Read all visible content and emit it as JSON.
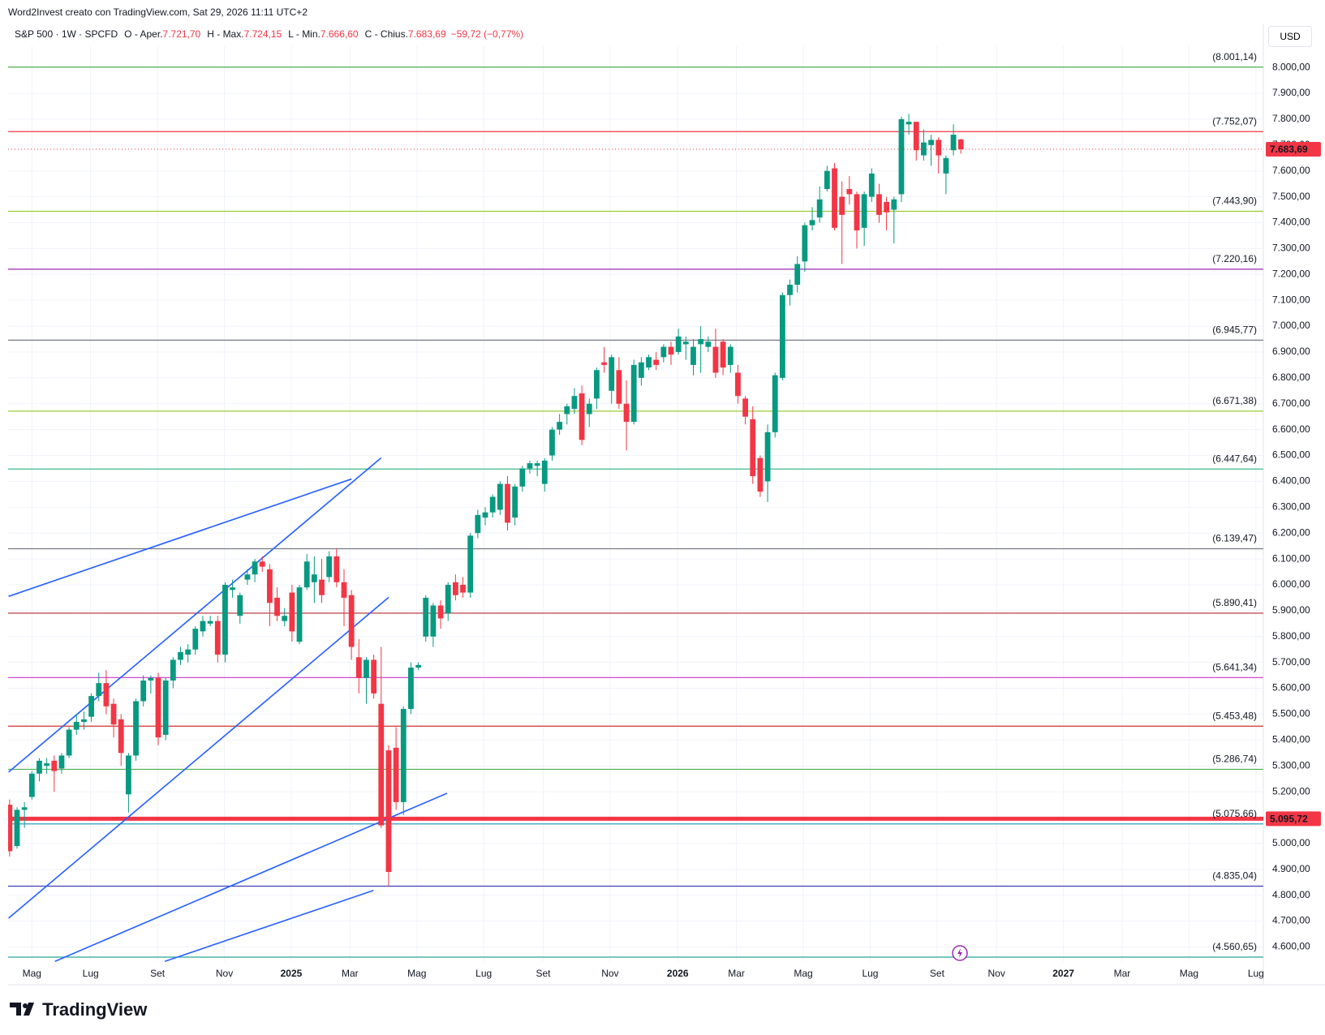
{
  "header": "Word2Invest creato con TradingView.com, Sat 29, 2026 11:11 UTC+2",
  "legend": {
    "symbol": "S&P 500 · 1W · SPCFD",
    "items": [
      {
        "key": "O - Aper.",
        "value": "7.721,70"
      },
      {
        "key": "H - Max.",
        "value": "7.724,15"
      },
      {
        "key": "L - Min.",
        "value": "7.666,60"
      },
      {
        "key": "C - Chius.",
        "value": "7.683,69"
      }
    ],
    "change": "−59,72 (−0,77%)"
  },
  "currency": "USD",
  "brand": "TradingView",
  "chart_data": {
    "type": "candlestick",
    "up_color": "#089981",
    "down_color": "#f23645",
    "grid": true,
    "ylim": [
      4545,
      8082
    ],
    "xlim": [
      -0.2,
      168.7
    ],
    "yticks": [
      {
        "value": 4600,
        "label": "4.600,00"
      },
      {
        "value": 4700,
        "label": "4.700,00"
      },
      {
        "value": 4800,
        "label": "4.800,00"
      },
      {
        "value": 4900,
        "label": "4.900,00"
      },
      {
        "value": 5000,
        "label": "5.000,00"
      },
      {
        "value": 5100,
        "label": "5.100,00"
      },
      {
        "value": 5200,
        "label": "5.200,00"
      },
      {
        "value": 5300,
        "label": "5.300,00"
      },
      {
        "value": 5400,
        "label": "5.400,00"
      },
      {
        "value": 5500,
        "label": "5.500,00"
      },
      {
        "value": 5600,
        "label": "5.600,00"
      },
      {
        "value": 5700,
        "label": "5.700,00"
      },
      {
        "value": 5800,
        "label": "5.800,00"
      },
      {
        "value": 5900,
        "label": "5.900,00"
      },
      {
        "value": 6000,
        "label": "6.000,00"
      },
      {
        "value": 6100,
        "label": "6.100,00"
      },
      {
        "value": 6200,
        "label": "6.200,00"
      },
      {
        "value": 6300,
        "label": "6.300,00"
      },
      {
        "value": 6400,
        "label": "6.400,00"
      },
      {
        "value": 6500,
        "label": "6.500,00"
      },
      {
        "value": 6600,
        "label": "6.600,00"
      },
      {
        "value": 6700,
        "label": "6.700,00"
      },
      {
        "value": 6800,
        "label": "6.800,00"
      },
      {
        "value": 6900,
        "label": "6.900,00"
      },
      {
        "value": 7000,
        "label": "7.000,00"
      },
      {
        "value": 7100,
        "label": "7.100,00"
      },
      {
        "value": 7200,
        "label": "7.200,00"
      },
      {
        "value": 7300,
        "label": "7.300,00"
      },
      {
        "value": 7400,
        "label": "7.400,00"
      },
      {
        "value": 7500,
        "label": "7.500,00"
      },
      {
        "value": 7600,
        "label": "7.600,00"
      },
      {
        "value": 7700,
        "label": "7.700,00"
      },
      {
        "value": 7800,
        "label": "7.800,00"
      },
      {
        "value": 7900,
        "label": "7.900,00"
      },
      {
        "value": 8000,
        "label": "8.000,00"
      }
    ],
    "xticks": [
      {
        "value": 3,
        "label": "Mag"
      },
      {
        "value": 10.9,
        "label": "Lug"
      },
      {
        "value": 19.9,
        "label": "Set"
      },
      {
        "value": 28.9,
        "label": "Nov"
      },
      {
        "value": 37.9,
        "label": "2025"
      },
      {
        "value": 45.8,
        "label": "Mar"
      },
      {
        "value": 54.8,
        "label": "Mag"
      },
      {
        "value": 63.8,
        "label": "Lug"
      },
      {
        "value": 71.8,
        "label": "Set"
      },
      {
        "value": 80.8,
        "label": "Nov"
      },
      {
        "value": 89.9,
        "label": "2026"
      },
      {
        "value": 97.8,
        "label": "Mar"
      },
      {
        "value": 106.8,
        "label": "Mag"
      },
      {
        "value": 115.8,
        "label": "Lug"
      },
      {
        "value": 124.8,
        "label": "Set"
      },
      {
        "value": 132.8,
        "label": "Nov"
      },
      {
        "value": 141.8,
        "label": "2027"
      },
      {
        "value": 149.7,
        "label": "Mar"
      },
      {
        "value": 158.7,
        "label": "Mag"
      },
      {
        "value": 167.7,
        "label": "Lug"
      }
    ],
    "levels": [
      {
        "value": 8001.14,
        "label": "(8.001,14)",
        "color": "#4caf50"
      },
      {
        "value": 7752.07,
        "label": "(7.752,07)",
        "color": "#f23645"
      },
      {
        "value": 7443.9,
        "label": "(7.443,90)",
        "color": "#9ccc36"
      },
      {
        "value": 7220.16,
        "label": "(7.220,16)",
        "color": "#9c27b0"
      },
      {
        "value": 6945.77,
        "label": "(6.945,77)",
        "color": "#787b86"
      },
      {
        "value": 6671.38,
        "label": "(6.671,38)",
        "color": "#9ccc36"
      },
      {
        "value": 6447.64,
        "label": "(6.447,64)",
        "color": "#3cb98a"
      },
      {
        "value": 6139.47,
        "label": "(6.139,47)",
        "color": "#787b86"
      },
      {
        "value": 5890.41,
        "label": "(5.890,41)",
        "color": "#b22833"
      },
      {
        "value": 5641.34,
        "label": "(5.641,34)",
        "color": "#d04ad0"
      },
      {
        "value": 5453.48,
        "label": "(5.453,48)",
        "color": "#d32f2f"
      },
      {
        "value": 5286.74,
        "label": "(5.286,74)",
        "color": "#4caf50"
      },
      {
        "value": 5075.66,
        "label": "(5.075,66)",
        "color": "#2f9fc0"
      },
      {
        "value": 4835.04,
        "label": "(4.835,04)",
        "color": "#3f3fb3"
      },
      {
        "value": 4560.65,
        "label": "(4.560,65)",
        "color": "#26a69a"
      }
    ],
    "price_line": {
      "value": 5095.72,
      "label": "5.095,72",
      "color": "#f23645"
    },
    "last_price": {
      "value": 7683.69,
      "label": "7.683,69",
      "color": "#f23645"
    },
    "ohlc": [
      [
        5150,
        5170,
        4950,
        4970
      ],
      [
        4990,
        5140,
        4980,
        5130
      ],
      [
        5130,
        5160,
        5060,
        5140
      ],
      [
        5180,
        5280,
        5170,
        5270
      ],
      [
        5270,
        5330,
        5240,
        5320
      ],
      [
        5300,
        5330,
        5270,
        5310
      ],
      [
        5320,
        5340,
        5200,
        5280
      ],
      [
        5290,
        5350,
        5270,
        5340
      ],
      [
        5340,
        5450,
        5330,
        5440
      ],
      [
        5440,
        5500,
        5420,
        5470
      ],
      [
        5470,
        5510,
        5440,
        5480
      ],
      [
        5490,
        5580,
        5470,
        5570
      ],
      [
        5570,
        5660,
        5550,
        5620
      ],
      [
        5620,
        5670,
        5500,
        5530
      ],
      [
        5540,
        5560,
        5410,
        5460
      ],
      [
        5480,
        5500,
        5300,
        5350
      ],
      [
        5190,
        5350,
        5120,
        5340
      ],
      [
        5340,
        5560,
        5320,
        5550
      ],
      [
        5550,
        5650,
        5530,
        5630
      ],
      [
        5630,
        5650,
        5580,
        5640
      ],
      [
        5640,
        5660,
        5380,
        5410
      ],
      [
        5420,
        5640,
        5400,
        5630
      ],
      [
        5630,
        5720,
        5600,
        5710
      ],
      [
        5710,
        5760,
        5690,
        5740
      ],
      [
        5730,
        5770,
        5700,
        5750
      ],
      [
        5750,
        5840,
        5730,
        5830
      ],
      [
        5820,
        5880,
        5800,
        5860
      ],
      [
        5850,
        5880,
        5840,
        5860
      ],
      [
        5860,
        5880,
        5700,
        5730
      ],
      [
        5730,
        6010,
        5700,
        6000
      ],
      [
        5980,
        6020,
        5950,
        5990
      ],
      [
        5880,
        5970,
        5850,
        5960
      ],
      [
        6020,
        6060,
        6000,
        6040
      ],
      [
        6040,
        6100,
        6010,
        6090
      ],
      [
        6090,
        6110,
        6050,
        6070
      ],
      [
        6060,
        6080,
        5840,
        5930
      ],
      [
        5950,
        5990,
        5860,
        5880
      ],
      [
        5860,
        5910,
        5840,
        5880
      ],
      [
        5970,
        6000,
        5780,
        5820
      ],
      [
        5780,
        6000,
        5770,
        5990
      ],
      [
        5990,
        6120,
        5980,
        6090
      ],
      [
        6010,
        6110,
        5930,
        6040
      ],
      [
        6020,
        6100,
        5930,
        5960
      ],
      [
        6030,
        6130,
        6010,
        6110
      ],
      [
        6110,
        6140,
        5990,
        6010
      ],
      [
        6010,
        6060,
        5840,
        5950
      ],
      [
        5960,
        5980,
        5710,
        5760
      ],
      [
        5720,
        5790,
        5580,
        5640
      ],
      [
        5640,
        5720,
        5540,
        5710
      ],
      [
        5710,
        5730,
        5560,
        5580
      ],
      [
        5540,
        5760,
        5060,
        5070
      ],
      [
        5360,
        5380,
        4835,
        4890
      ],
      [
        5370,
        5450,
        5130,
        5160
      ],
      [
        5160,
        5530,
        5110,
        5520
      ],
      [
        5520,
        5700,
        5500,
        5680
      ],
      [
        5680,
        5700,
        5670,
        5690
      ],
      [
        5800,
        5960,
        5780,
        5950
      ],
      [
        5800,
        5930,
        5760,
        5920
      ],
      [
        5920,
        5940,
        5830,
        5870
      ],
      [
        5890,
        6010,
        5860,
        6000
      ],
      [
        6010,
        6040,
        5940,
        5960
      ],
      [
        6000,
        6030,
        5950,
        5970
      ],
      [
        5970,
        6200,
        5950,
        6190
      ],
      [
        6200,
        6290,
        6180,
        6270
      ],
      [
        6260,
        6300,
        6230,
        6280
      ],
      [
        6280,
        6350,
        6260,
        6340
      ],
      [
        6290,
        6400,
        6270,
        6390
      ],
      [
        6390,
        6420,
        6210,
        6240
      ],
      [
        6260,
        6390,
        6230,
        6380
      ],
      [
        6380,
        6460,
        6360,
        6450
      ],
      [
        6450,
        6480,
        6430,
        6470
      ],
      [
        6460,
        6480,
        6420,
        6470
      ],
      [
        6390,
        6490,
        6360,
        6480
      ],
      [
        6500,
        6610,
        6480,
        6600
      ],
      [
        6600,
        6660,
        6580,
        6630
      ],
      [
        6660,
        6700,
        6620,
        6690
      ],
      [
        6680,
        6760,
        6660,
        6730
      ],
      [
        6740,
        6770,
        6540,
        6560
      ],
      [
        6660,
        6720,
        6610,
        6700
      ],
      [
        6720,
        6840,
        6680,
        6830
      ],
      [
        6860,
        6920,
        6820,
        6850
      ],
      [
        6750,
        6890,
        6700,
        6880
      ],
      [
        6830,
        6880,
        6680,
        6700
      ],
      [
        6700,
        6790,
        6520,
        6630
      ],
      [
        6630,
        6870,
        6620,
        6850
      ],
      [
        6800,
        6880,
        6770,
        6860
      ],
      [
        6840,
        6890,
        6830,
        6880
      ],
      [
        6870,
        6900,
        6830,
        6850
      ],
      [
        6880,
        6930,
        6860,
        6920
      ],
      [
        6920,
        6940,
        6850,
        6890
      ],
      [
        6900,
        6990,
        6890,
        6960
      ],
      [
        6930,
        6960,
        6870,
        6940
      ],
      [
        6850,
        6950,
        6810,
        6920
      ],
      [
        6930,
        7000,
        6820,
        6950
      ],
      [
        6920,
        6960,
        6900,
        6940
      ],
      [
        6920,
        6990,
        6800,
        6820
      ],
      [
        6940,
        6950,
        6810,
        6840
      ],
      [
        6850,
        6930,
        6820,
        6920
      ],
      [
        6820,
        6850,
        6700,
        6730
      ],
      [
        6720,
        6730,
        6620,
        6650
      ],
      [
        6640,
        6690,
        6390,
        6420
      ],
      [
        6490,
        6500,
        6340,
        6360
      ],
      [
        6400,
        6620,
        6320,
        6590
      ],
      [
        6590,
        6820,
        6570,
        6810
      ],
      [
        6800,
        7130,
        6790,
        7120
      ],
      [
        7120,
        7180,
        7080,
        7160
      ],
      [
        7160,
        7270,
        7130,
        7240
      ],
      [
        7250,
        7400,
        7210,
        7390
      ],
      [
        7390,
        7460,
        7370,
        7410
      ],
      [
        7420,
        7540,
        7400,
        7490
      ],
      [
        7530,
        7620,
        7520,
        7600
      ],
      [
        7610,
        7630,
        7370,
        7380
      ],
      [
        7500,
        7560,
        7240,
        7430
      ],
      [
        7530,
        7580,
        7470,
        7510
      ],
      [
        7510,
        7520,
        7300,
        7370
      ],
      [
        7380,
        7520,
        7310,
        7510
      ],
      [
        7500,
        7610,
        7480,
        7590
      ],
      [
        7510,
        7550,
        7400,
        7430
      ],
      [
        7480,
        7500,
        7370,
        7440
      ],
      [
        7450,
        7500,
        7320,
        7490
      ],
      [
        7510,
        7810,
        7480,
        7800
      ],
      [
        7780,
        7820,
        7740,
        7790
      ],
      [
        7790,
        7790,
        7640,
        7680
      ],
      [
        7660,
        7760,
        7640,
        7710
      ],
      [
        7700,
        7740,
        7620,
        7720
      ],
      [
        7720,
        7730,
        7590,
        7660
      ],
      [
        7590,
        7660,
        7510,
        7650
      ],
      [
        7680,
        7780,
        7660,
        7740
      ],
      [
        7721.7,
        7724.15,
        7666.6,
        7683.69
      ]
    ]
  }
}
